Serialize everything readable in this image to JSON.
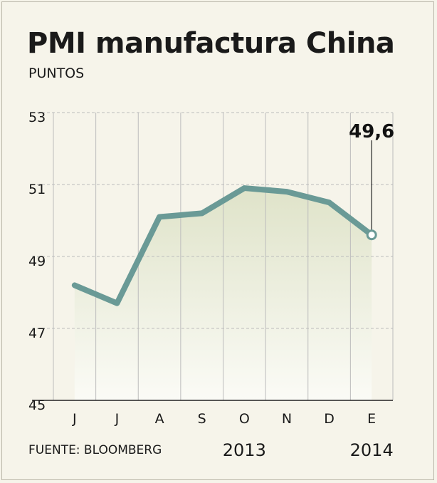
{
  "header": {
    "title": "PMI manufactura China",
    "subtitle": "PUNTOS"
  },
  "footer": {
    "source": "FUENTE: BLOOMBERG"
  },
  "colors": {
    "line": "#6a9a96",
    "area_top": "#dfe3c9",
    "area_bottom": "#fbfbf6",
    "grid": "#bcbcbc",
    "background": "#f6f4ea"
  },
  "chart_data": {
    "type": "line",
    "categories": [
      "J",
      "J",
      "A",
      "S",
      "O",
      "N",
      "D",
      "E"
    ],
    "year_labels": [
      {
        "category_index": 4,
        "label": "2013"
      },
      {
        "category_index": 7,
        "label": "2014"
      }
    ],
    "series": [
      {
        "values": [
          48.2,
          47.7,
          50.1,
          50.2,
          50.9,
          50.8,
          50.5,
          49.6
        ]
      }
    ],
    "ylim": [
      45,
      53
    ],
    "yticks": [
      45,
      47,
      49,
      51,
      53
    ],
    "annotations": [
      {
        "category_index": 7,
        "value": 49.6,
        "label": "49,6"
      }
    ],
    "grid": true,
    "area_fill": true
  }
}
